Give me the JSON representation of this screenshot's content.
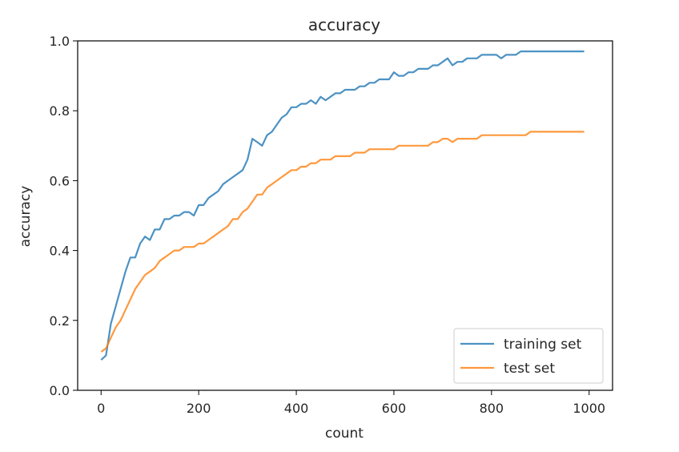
{
  "chart_data": {
    "type": "line",
    "title": "accuracy",
    "top_strip_text": "",
    "xlabel": "count",
    "ylabel": "accuracy",
    "xlim": [
      -48,
      1048
    ],
    "ylim": [
      0.0,
      1.0
    ],
    "xticks": [
      0,
      200,
      400,
      600,
      800,
      1000
    ],
    "xtick_labels": [
      "0",
      "200",
      "400",
      "600",
      "800",
      "1000"
    ],
    "yticks": [
      0.0,
      0.2,
      0.4,
      0.6,
      0.8,
      1.0
    ],
    "ytick_labels": [
      "0.0",
      "0.2",
      "0.4",
      "0.6",
      "0.8",
      "1.0"
    ],
    "grid": false,
    "legend_position": "lower-right",
    "series": [
      {
        "name": "training set",
        "color": "#1f77b4",
        "x": [
          0,
          10,
          20,
          30,
          40,
          50,
          60,
          70,
          80,
          90,
          100,
          110,
          120,
          130,
          140,
          150,
          160,
          170,
          180,
          190,
          200,
          210,
          220,
          230,
          240,
          250,
          260,
          270,
          280,
          290,
          300,
          310,
          320,
          330,
          340,
          350,
          360,
          370,
          380,
          390,
          400,
          410,
          420,
          430,
          440,
          450,
          460,
          470,
          480,
          490,
          500,
          510,
          520,
          530,
          540,
          550,
          560,
          570,
          580,
          590,
          600,
          610,
          620,
          630,
          640,
          650,
          660,
          670,
          680,
          690,
          700,
          710,
          720,
          730,
          740,
          750,
          760,
          770,
          780,
          790,
          800,
          810,
          820,
          830,
          840,
          850,
          860,
          870,
          880,
          890,
          900,
          910,
          920,
          930,
          940,
          950,
          960,
          970,
          980,
          990
        ],
        "values": [
          0.087,
          0.1,
          0.19,
          0.24,
          0.29,
          0.34,
          0.38,
          0.38,
          0.42,
          0.44,
          0.43,
          0.46,
          0.46,
          0.49,
          0.49,
          0.5,
          0.5,
          0.51,
          0.51,
          0.5,
          0.53,
          0.53,
          0.55,
          0.56,
          0.57,
          0.59,
          0.6,
          0.61,
          0.62,
          0.63,
          0.66,
          0.72,
          0.71,
          0.7,
          0.73,
          0.74,
          0.76,
          0.78,
          0.79,
          0.81,
          0.81,
          0.82,
          0.82,
          0.83,
          0.82,
          0.84,
          0.83,
          0.84,
          0.85,
          0.85,
          0.86,
          0.86,
          0.86,
          0.87,
          0.87,
          0.88,
          0.88,
          0.89,
          0.89,
          0.89,
          0.91,
          0.9,
          0.9,
          0.91,
          0.91,
          0.92,
          0.92,
          0.92,
          0.93,
          0.93,
          0.94,
          0.95,
          0.93,
          0.94,
          0.94,
          0.95,
          0.95,
          0.95,
          0.96,
          0.96,
          0.96,
          0.96,
          0.95,
          0.96,
          0.96,
          0.96,
          0.97,
          0.97,
          0.97,
          0.97,
          0.97,
          0.97,
          0.97,
          0.97,
          0.97,
          0.97,
          0.97,
          0.97,
          0.97,
          0.97
        ]
      },
      {
        "name": "test set",
        "color": "#ff7f0e",
        "x": [
          0,
          10,
          20,
          30,
          40,
          50,
          60,
          70,
          80,
          90,
          100,
          110,
          120,
          130,
          140,
          150,
          160,
          170,
          180,
          190,
          200,
          210,
          220,
          230,
          240,
          250,
          260,
          270,
          280,
          290,
          300,
          310,
          320,
          330,
          340,
          350,
          360,
          370,
          380,
          390,
          400,
          410,
          420,
          430,
          440,
          450,
          460,
          470,
          480,
          490,
          500,
          510,
          520,
          530,
          540,
          550,
          560,
          570,
          580,
          590,
          600,
          610,
          620,
          630,
          640,
          650,
          660,
          670,
          680,
          690,
          700,
          710,
          720,
          730,
          740,
          750,
          760,
          770,
          780,
          790,
          800,
          810,
          820,
          830,
          840,
          850,
          860,
          870,
          880,
          890,
          900,
          910,
          920,
          930,
          940,
          950,
          960,
          970,
          980,
          990
        ],
        "values": [
          0.11,
          0.12,
          0.15,
          0.18,
          0.2,
          0.23,
          0.26,
          0.29,
          0.31,
          0.33,
          0.34,
          0.35,
          0.37,
          0.38,
          0.39,
          0.4,
          0.4,
          0.41,
          0.41,
          0.41,
          0.42,
          0.42,
          0.43,
          0.44,
          0.45,
          0.46,
          0.47,
          0.49,
          0.49,
          0.51,
          0.52,
          0.54,
          0.56,
          0.56,
          0.58,
          0.59,
          0.6,
          0.61,
          0.62,
          0.63,
          0.63,
          0.64,
          0.64,
          0.65,
          0.65,
          0.66,
          0.66,
          0.66,
          0.67,
          0.67,
          0.67,
          0.67,
          0.68,
          0.68,
          0.68,
          0.69,
          0.69,
          0.69,
          0.69,
          0.69,
          0.69,
          0.7,
          0.7,
          0.7,
          0.7,
          0.7,
          0.7,
          0.7,
          0.71,
          0.71,
          0.72,
          0.72,
          0.71,
          0.72,
          0.72,
          0.72,
          0.72,
          0.72,
          0.73,
          0.73,
          0.73,
          0.73,
          0.73,
          0.73,
          0.73,
          0.73,
          0.73,
          0.73,
          0.74,
          0.74,
          0.74,
          0.74,
          0.74,
          0.74,
          0.74,
          0.74,
          0.74,
          0.74,
          0.74,
          0.74
        ]
      }
    ]
  }
}
